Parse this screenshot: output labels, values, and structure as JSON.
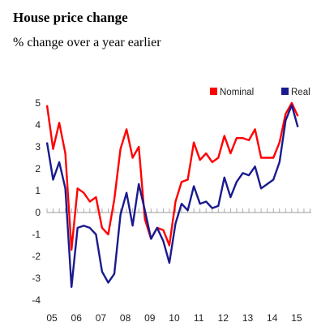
{
  "title": "House price change",
  "subtitle": "% change over a year earlier",
  "colors": {
    "nominal": "#ff0000",
    "real": "#1a1a8f",
    "axis": "#999999"
  },
  "chart_data": {
    "type": "line",
    "ylim": [
      -4,
      5
    ],
    "xlim": [
      2005,
      2015.8
    ],
    "y_ticks": [
      5,
      4,
      3,
      2,
      1,
      0,
      -1,
      -2,
      -3,
      -4
    ],
    "x_ticks": [
      {
        "label": "05",
        "x": 2005.2
      },
      {
        "label": "06",
        "x": 2006.2
      },
      {
        "label": "07",
        "x": 2007.2
      },
      {
        "label": "08",
        "x": 2008.2
      },
      {
        "label": "09",
        "x": 2009.2
      },
      {
        "label": "10",
        "x": 2010.2
      },
      {
        "label": "11",
        "x": 2011.2
      },
      {
        "label": "12",
        "x": 2012.2
      },
      {
        "label": "13",
        "x": 2013.2
      },
      {
        "label": "14",
        "x": 2014.2
      },
      {
        "label": "15",
        "x": 2015.2
      }
    ],
    "grid": false,
    "legend": "top-right",
    "series": [
      {
        "name": "Nominal",
        "color": "#ff0000",
        "points": [
          [
            2005.0,
            4.9
          ],
          [
            2005.25,
            2.9
          ],
          [
            2005.5,
            4.1
          ],
          [
            2005.75,
            2.7
          ],
          [
            2006.0,
            -1.7
          ],
          [
            2006.25,
            1.1
          ],
          [
            2006.5,
            0.9
          ],
          [
            2006.75,
            0.5
          ],
          [
            2007.0,
            0.7
          ],
          [
            2007.25,
            -0.7
          ],
          [
            2007.5,
            -1.0
          ],
          [
            2007.75,
            0.6
          ],
          [
            2008.0,
            2.9
          ],
          [
            2008.25,
            3.8
          ],
          [
            2008.5,
            2.5
          ],
          [
            2008.75,
            3.0
          ],
          [
            2009.0,
            -0.3
          ],
          [
            2009.25,
            -1.2
          ],
          [
            2009.5,
            -0.7
          ],
          [
            2009.75,
            -0.8
          ],
          [
            2010.0,
            -1.5
          ],
          [
            2010.25,
            0.5
          ],
          [
            2010.5,
            1.4
          ],
          [
            2010.75,
            1.5
          ],
          [
            2011.0,
            3.2
          ],
          [
            2011.25,
            2.4
          ],
          [
            2011.5,
            2.7
          ],
          [
            2011.75,
            2.3
          ],
          [
            2012.0,
            2.5
          ],
          [
            2012.25,
            3.5
          ],
          [
            2012.5,
            2.7
          ],
          [
            2012.75,
            3.4
          ],
          [
            2013.0,
            3.4
          ],
          [
            2013.25,
            3.3
          ],
          [
            2013.5,
            3.8
          ],
          [
            2013.75,
            2.5
          ],
          [
            2014.0,
            2.5
          ],
          [
            2014.25,
            2.5
          ],
          [
            2014.5,
            3.2
          ],
          [
            2014.75,
            4.5
          ],
          [
            2015.0,
            5.0
          ],
          [
            2015.25,
            4.4
          ]
        ]
      },
      {
        "name": "Real",
        "color": "#1a1a8f",
        "points": [
          [
            2005.0,
            3.2
          ],
          [
            2005.25,
            1.5
          ],
          [
            2005.5,
            2.3
          ],
          [
            2005.75,
            1.1
          ],
          [
            2006.0,
            -3.4
          ],
          [
            2006.25,
            -0.7
          ],
          [
            2006.5,
            -0.6
          ],
          [
            2006.75,
            -0.7
          ],
          [
            2007.0,
            -1.0
          ],
          [
            2007.25,
            -2.7
          ],
          [
            2007.5,
            -3.2
          ],
          [
            2007.75,
            -2.8
          ],
          [
            2008.0,
            -0.1
          ],
          [
            2008.25,
            0.9
          ],
          [
            2008.5,
            -0.6
          ],
          [
            2008.75,
            1.3
          ],
          [
            2009.0,
            0.1
          ],
          [
            2009.25,
            -1.2
          ],
          [
            2009.5,
            -0.7
          ],
          [
            2009.75,
            -1.3
          ],
          [
            2010.0,
            -2.3
          ],
          [
            2010.25,
            -0.5
          ],
          [
            2010.5,
            0.4
          ],
          [
            2010.75,
            0.1
          ],
          [
            2011.0,
            1.2
          ],
          [
            2011.25,
            0.4
          ],
          [
            2011.5,
            0.5
          ],
          [
            2011.75,
            0.2
          ],
          [
            2012.0,
            0.3
          ],
          [
            2012.25,
            1.6
          ],
          [
            2012.5,
            0.7
          ],
          [
            2012.75,
            1.4
          ],
          [
            2013.0,
            1.8
          ],
          [
            2013.25,
            1.7
          ],
          [
            2013.5,
            2.1
          ],
          [
            2013.75,
            1.1
          ],
          [
            2014.0,
            1.3
          ],
          [
            2014.25,
            1.5
          ],
          [
            2014.5,
            2.3
          ],
          [
            2014.75,
            4.2
          ],
          [
            2015.0,
            4.9
          ],
          [
            2015.25,
            3.9
          ]
        ]
      }
    ]
  }
}
